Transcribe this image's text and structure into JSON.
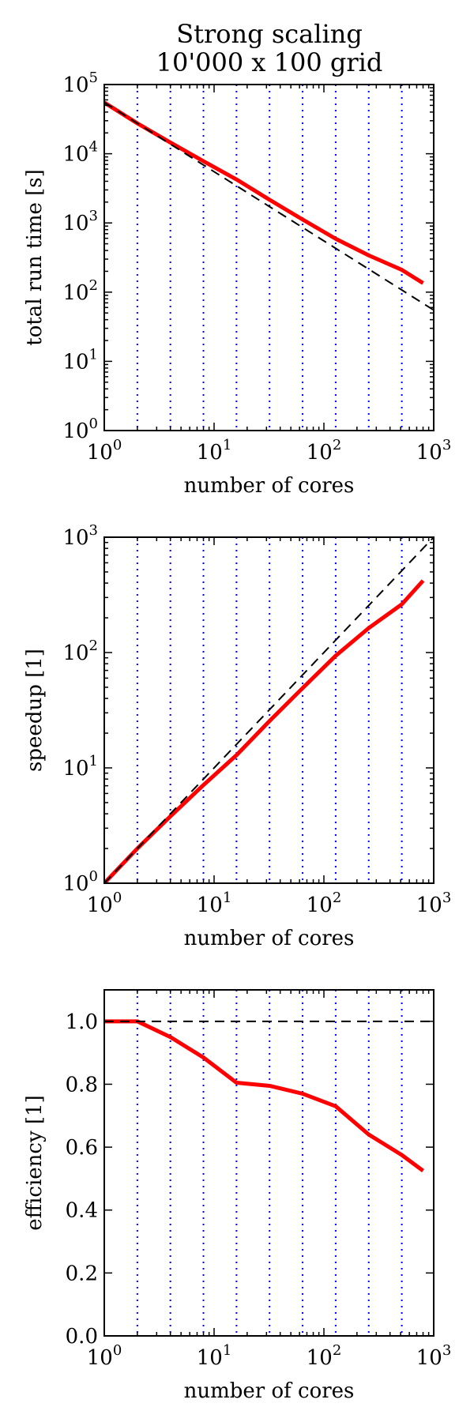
{
  "title_line1": "Strong scaling",
  "title_line2": "10'000 x 100 grid",
  "cores": [
    1,
    2,
    4,
    8,
    16,
    32,
    64,
    128,
    256,
    512,
    800
  ],
  "marker_lines": [
    2,
    4,
    8,
    16,
    32,
    64,
    128,
    256,
    512
  ],
  "colors": {
    "measured": "#ff0000",
    "ideal": "#000000",
    "marker": "#0000ff"
  },
  "chart_data": [
    {
      "type": "line",
      "xlabel": "number of cores",
      "ylabel": "total run time [s]",
      "xscale": "log",
      "yscale": "log",
      "xlim": [
        1,
        1000
      ],
      "ylim": [
        1,
        100000
      ],
      "x_ticks": [
        {
          "v": 1,
          "base": "10",
          "exp": "0"
        },
        {
          "v": 10,
          "base": "10",
          "exp": "1"
        },
        {
          "v": 100,
          "base": "10",
          "exp": "2"
        },
        {
          "v": 1000,
          "base": "10",
          "exp": "3"
        }
      ],
      "y_ticks": [
        {
          "v": 1,
          "base": "10",
          "exp": "0"
        },
        {
          "v": 10,
          "base": "10",
          "exp": "1"
        },
        {
          "v": 100,
          "base": "10",
          "exp": "2"
        },
        {
          "v": 1000,
          "base": "10",
          "exp": "3"
        },
        {
          "v": 10000,
          "base": "10",
          "exp": "4"
        },
        {
          "v": 100000,
          "base": "10",
          "exp": "5"
        }
      ],
      "series": [
        {
          "style": "solid",
          "x": [
            1,
            2,
            4,
            8,
            16,
            32,
            64,
            128,
            256,
            512,
            800
          ],
          "y": [
            55000,
            27500,
            14500,
            7800,
            4250,
            2160,
            1120,
            590,
            340,
            210,
            135
          ]
        },
        {
          "style": "dashed",
          "x": [
            1,
            1000
          ],
          "y": [
            55000,
            55
          ]
        }
      ]
    },
    {
      "type": "line",
      "xlabel": "number of cores",
      "ylabel": "speedup [1]",
      "xscale": "log",
      "yscale": "log",
      "xlim": [
        1,
        1000
      ],
      "ylim": [
        1,
        1000
      ],
      "x_ticks": [
        {
          "v": 1,
          "base": "10",
          "exp": "0"
        },
        {
          "v": 10,
          "base": "10",
          "exp": "1"
        },
        {
          "v": 100,
          "base": "10",
          "exp": "2"
        },
        {
          "v": 1000,
          "base": "10",
          "exp": "3"
        }
      ],
      "y_ticks": [
        {
          "v": 1,
          "base": "10",
          "exp": "0"
        },
        {
          "v": 10,
          "base": "10",
          "exp": "1"
        },
        {
          "v": 100,
          "base": "10",
          "exp": "2"
        },
        {
          "v": 1000,
          "base": "10",
          "exp": "3"
        }
      ],
      "series": [
        {
          "style": "solid",
          "x": [
            1,
            2,
            4,
            8,
            16,
            32,
            64,
            128,
            256,
            512,
            800
          ],
          "y": [
            1,
            2,
            3.8,
            7.1,
            12.9,
            25.5,
            49.2,
            93.8,
            163,
            262,
            420
          ]
        },
        {
          "style": "dashed",
          "x": [
            1,
            1000
          ],
          "y": [
            1,
            1000
          ]
        }
      ]
    },
    {
      "type": "line",
      "xlabel": "number of cores",
      "ylabel": "efficiency [1]",
      "xscale": "log",
      "yscale": "linear",
      "xlim": [
        1,
        1000
      ],
      "ylim": [
        0,
        1.1
      ],
      "x_ticks": [
        {
          "v": 1,
          "base": "10",
          "exp": "0"
        },
        {
          "v": 10,
          "base": "10",
          "exp": "1"
        },
        {
          "v": 100,
          "base": "10",
          "exp": "2"
        },
        {
          "v": 1000,
          "base": "10",
          "exp": "3"
        }
      ],
      "y_ticks": [
        {
          "v": 0,
          "label": "0.0"
        },
        {
          "v": 0.2,
          "label": "0.2"
        },
        {
          "v": 0.4,
          "label": "0.4"
        },
        {
          "v": 0.6,
          "label": "0.6"
        },
        {
          "v": 0.8,
          "label": "0.8"
        },
        {
          "v": 1.0,
          "label": "1.0"
        }
      ],
      "series": [
        {
          "style": "solid",
          "x": [
            1,
            2,
            4,
            8,
            16,
            32,
            64,
            128,
            256,
            512,
            800
          ],
          "y": [
            1.0,
            1.0,
            0.95,
            0.885,
            0.805,
            0.795,
            0.77,
            0.73,
            0.64,
            0.575,
            0.525
          ]
        },
        {
          "style": "dashed",
          "x": [
            1,
            1000
          ],
          "y": [
            1.0,
            1.0
          ]
        }
      ]
    }
  ]
}
